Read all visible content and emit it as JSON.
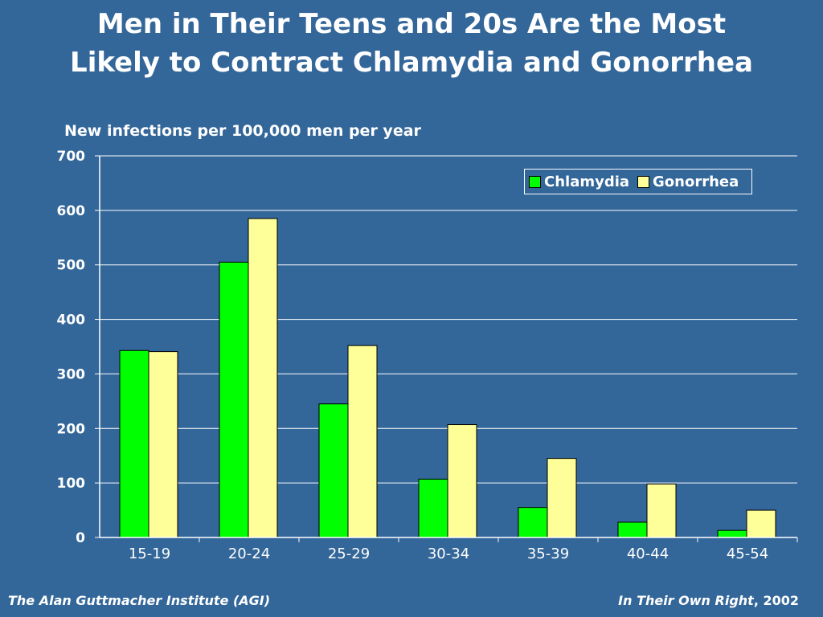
{
  "slide": {
    "title_line1": "Men in Their Teens and 20s Are the Most",
    "title_line2": "Likely to Contract Chlamydia and Gonorrhea",
    "background_color": "#336699"
  },
  "footer": {
    "left": "The Alan Guttmacher Institute (AGI)",
    "right_publication": "In Their Own Right",
    "right_year": ", 2002"
  },
  "chart_data": {
    "type": "bar",
    "title": "",
    "ylabel": "New infections per 100,000 men per year",
    "xlabel": "",
    "categories": [
      "15-19",
      "20-24",
      "25-29",
      "30-34",
      "35-39",
      "40-44",
      "45-54"
    ],
    "series": [
      {
        "name": "Chlamydia",
        "color": "#00ff00",
        "values": [
          343,
          505,
          245,
          107,
          55,
          28,
          13
        ]
      },
      {
        "name": "Gonorrhea",
        "color": "#ffff99",
        "values": [
          341,
          585,
          352,
          207,
          145,
          98,
          50
        ]
      }
    ],
    "ylim": [
      0,
      700
    ],
    "yticks": [
      "0",
      "100",
      "200",
      "300",
      "400",
      "500",
      "600",
      "700"
    ],
    "grid": true,
    "legend_position": "top-right"
  }
}
